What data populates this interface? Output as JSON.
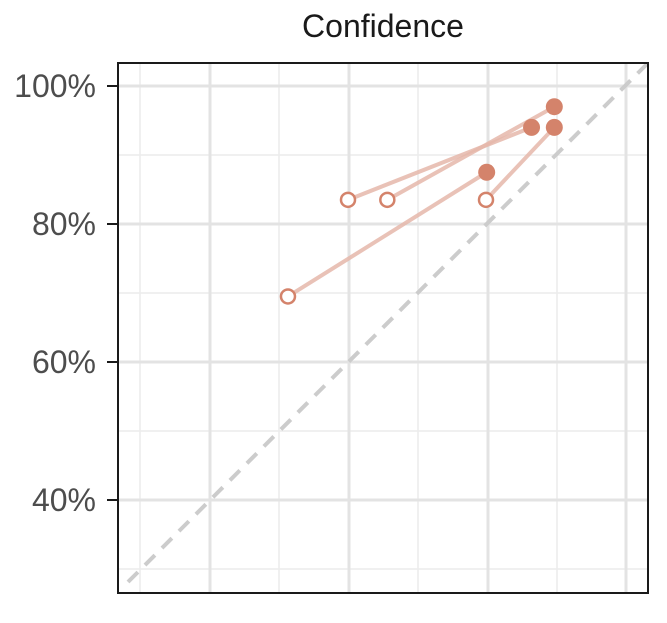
{
  "chart_data": {
    "type": "scatter",
    "title": "Confidence",
    "xlabel": "",
    "ylabel": "",
    "xlim": [
      0.27,
      1.02
    ],
    "ylim": [
      0.27,
      1.035
    ],
    "x_major_ticks": [
      0.4,
      0.6,
      0.8,
      1.0
    ],
    "y_major_ticks": [
      0.4,
      0.6,
      0.8,
      1.0
    ],
    "y_tick_labels": [
      "40%",
      "60%",
      "80%",
      "100%"
    ],
    "grid": true,
    "reference_line": {
      "style": "dashed",
      "from": [
        0.27,
        0.27
      ],
      "to": [
        1.02,
        1.02
      ],
      "color": "#cccccc"
    },
    "colors": {
      "marker": "#d4836b",
      "segment": "#e5b7aa",
      "grid": "#e6e6e6",
      "axis": "#1a1a1a"
    },
    "pairs": [
      {
        "from": [
          0.513,
          0.695
        ],
        "to": [
          0.801,
          0.875
        ]
      },
      {
        "from": [
          0.6,
          0.835
        ],
        "to": [
          0.866,
          0.94
        ]
      },
      {
        "from": [
          0.657,
          0.835
        ],
        "to": [
          0.899,
          0.97
        ]
      },
      {
        "from": [
          0.8,
          0.835
        ],
        "to": [
          0.899,
          0.94
        ]
      }
    ]
  }
}
